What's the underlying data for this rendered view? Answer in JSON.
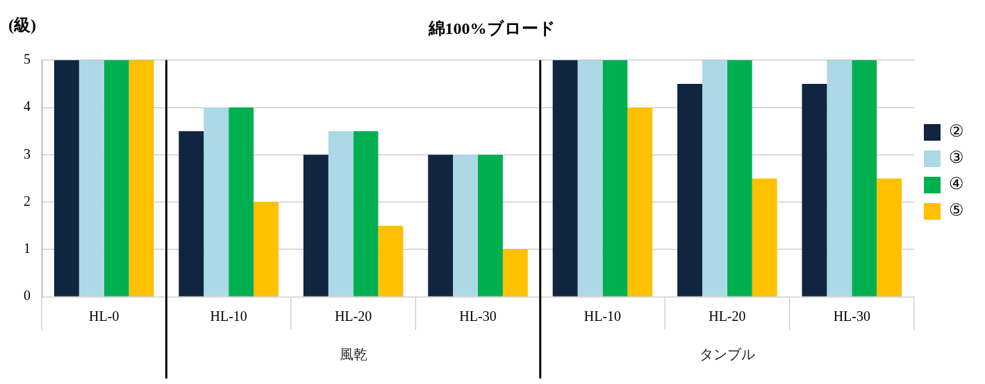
{
  "chart_data": {
    "type": "bar",
    "title": "綿100%ブロード",
    "ylabel": "(級)",
    "categories": [
      "HL-0",
      "HL-10",
      "HL-20",
      "HL-30",
      "HL-10",
      "HL-20",
      "HL-30"
    ],
    "series": [
      {
        "name": "②",
        "color": "#0f2540",
        "values": [
          5,
          3.5,
          3,
          3,
          5,
          4.5,
          4.5
        ]
      },
      {
        "name": "③",
        "color": "#add8e6",
        "values": [
          5,
          4,
          3.5,
          3,
          5,
          5,
          5
        ]
      },
      {
        "name": "④",
        "color": "#00b050",
        "values": [
          5,
          4,
          3.5,
          3,
          5,
          5,
          5
        ]
      },
      {
        "name": "⑤",
        "color": "#ffc000",
        "values": [
          5,
          2,
          1.5,
          1,
          4,
          2.5,
          2.5
        ]
      }
    ],
    "annotations": [
      "風乾",
      "タンブル"
    ],
    "ylim": [
      0,
      5
    ],
    "yticks": [
      0,
      1,
      2,
      3,
      4,
      5
    ],
    "grid": "y",
    "legend": "right"
  }
}
